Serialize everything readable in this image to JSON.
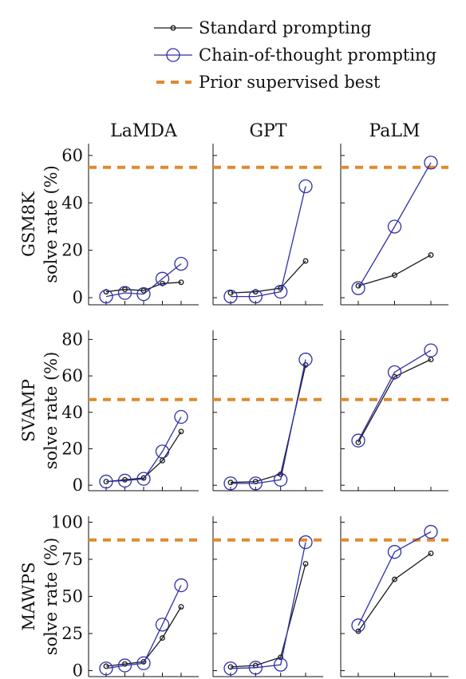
{
  "legend": {
    "standard": "Standard prompting",
    "cot": "Chain-of-thought prompting",
    "prior": "Prior supervised best"
  },
  "colors": {
    "standard": "#1a1a1a",
    "cot": "#2f2fa8",
    "prior": "#e08a2e",
    "axis": "#111111"
  },
  "chart_data": {
    "type": "line",
    "columns": [
      "LaMDA",
      "GPT",
      "PaLM"
    ],
    "rows": [
      {
        "dataset": "GSM8K",
        "ylabel": "solve rate (%)",
        "ylim": [
          -3,
          65
        ],
        "yticks": [
          0,
          20,
          40,
          60
        ],
        "prior_best": 55,
        "panels": [
          {
            "model": "LaMDA",
            "standard": [
              2.5,
              3.5,
              3.0,
              6.0,
              6.5
            ],
            "cot": [
              0.5,
              2.0,
              1.5,
              8.0,
              14.3
            ]
          },
          {
            "model": "GPT",
            "standard": [
              2.0,
              2.5,
              4.0,
              15.5
            ],
            "cot": [
              0.5,
              0.5,
              2.5,
              47.0
            ]
          },
          {
            "model": "PaLM",
            "standard": [
              5.0,
              9.5,
              18.0
            ],
            "cot": [
              4.0,
              30.0,
              57.0
            ]
          }
        ]
      },
      {
        "dataset": "SVAMP",
        "ylabel": "solve rate (%)",
        "ylim": [
          -3,
          85
        ],
        "yticks": [
          0,
          20,
          40,
          60,
          80
        ],
        "prior_best": 47,
        "panels": [
          {
            "model": "LaMDA",
            "standard": [
              2.0,
              3.0,
              4.0,
              13.5,
              29.5
            ],
            "cot": [
              2.0,
              2.5,
              3.5,
              18.5,
              37.5
            ]
          },
          {
            "model": "GPT",
            "standard": [
              1.5,
              2.0,
              6.0,
              66.0
            ],
            "cot": [
              1.0,
              1.0,
              3.0,
              69.0
            ]
          },
          {
            "model": "PaLM",
            "standard": [
              23.5,
              59.5,
              69.0
            ],
            "cot": [
              24.5,
              62.0,
              74.0
            ]
          }
        ]
      },
      {
        "dataset": "MAWPS",
        "ylabel": "solve rate (%)",
        "ylim": [
          -4,
          104
        ],
        "yticks": [
          0,
          25,
          50,
          75,
          100
        ],
        "prior_best": 88,
        "panels": [
          {
            "model": "LaMDA",
            "standard": [
              3.0,
              4.5,
              6.0,
              22.0,
              43.0
            ],
            "cot": [
              1.5,
              3.5,
              5.0,
              31.0,
              57.5
            ]
          },
          {
            "model": "GPT",
            "standard": [
              2.5,
              3.5,
              9.0,
              72.0
            ],
            "cot": [
              1.5,
              2.0,
              4.0,
              86.5
            ]
          },
          {
            "model": "PaLM",
            "standard": [
              26.5,
              61.5,
              79.0
            ],
            "cot": [
              30.5,
              80.0,
              93.5
            ]
          }
        ]
      }
    ],
    "grid": false,
    "legend_position": "top"
  }
}
